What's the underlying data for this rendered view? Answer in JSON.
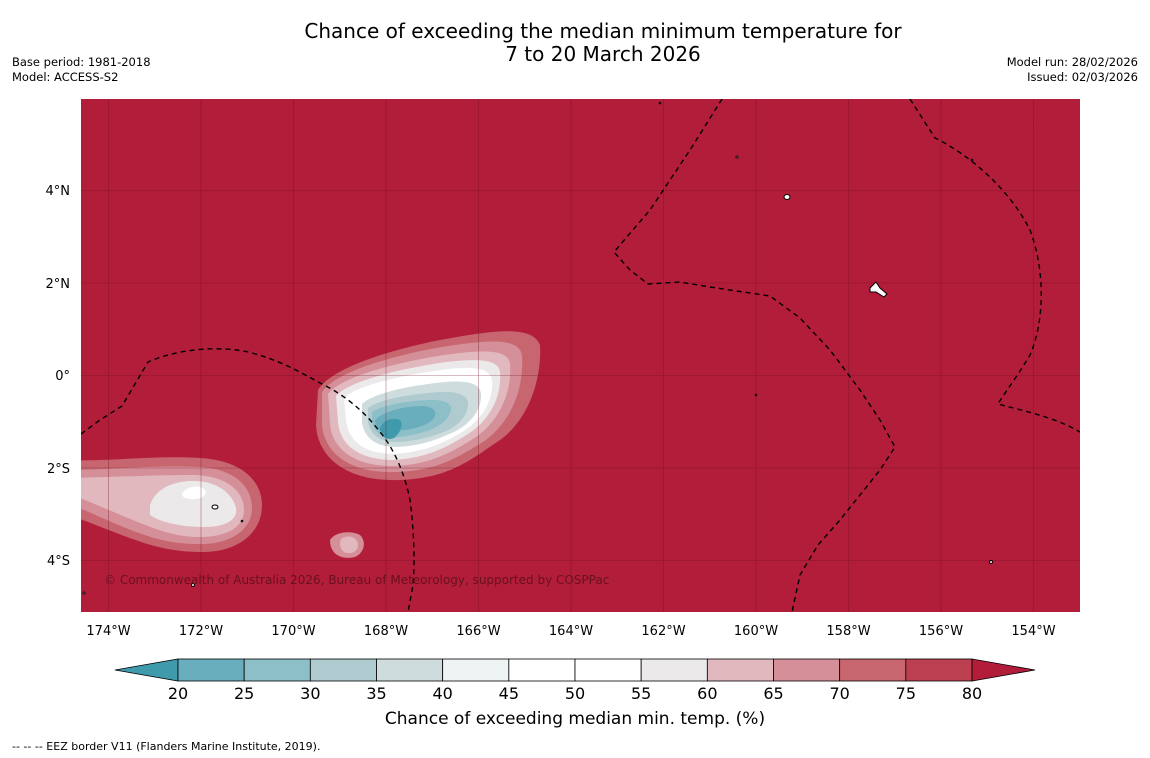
{
  "title": {
    "line1": "Chance of exceeding the median minimum temperature for",
    "line2": "7 to 20 March 2026"
  },
  "meta_left": {
    "base_period": "Base period: 1981-2018",
    "model": "Model: ACCESS-S2"
  },
  "meta_right": {
    "model_run": "Model run: 28/02/2026",
    "issued": "Issued: 02/03/2026"
  },
  "map": {
    "lon_labels": [
      "174°W",
      "172°W",
      "170°W",
      "168°W",
      "166°W",
      "164°W",
      "162°W",
      "160°W",
      "158°W",
      "156°W",
      "154°W"
    ],
    "lat_labels": [
      "4°N",
      "2°N",
      "0°",
      "2°S",
      "4°S"
    ],
    "copyright": "© Commonwealth of Australia 2026, Bureau of Meteorology, supported by COSPPac",
    "background_color": "#b21d3a"
  },
  "colorbar": {
    "ticks": [
      "20",
      "25",
      "30",
      "35",
      "40",
      "45",
      "50",
      "55",
      "60",
      "65",
      "70",
      "75",
      "80"
    ],
    "colors": [
      "#3f9aab",
      "#69aebd",
      "#8dbfc8",
      "#afcbcf",
      "#cfdcdd",
      "#eef3f3",
      "#ffffff",
      "#ffffff",
      "#ebe9e9",
      "#e2b8bf",
      "#d58f99",
      "#c7666f",
      "#bd4050",
      "#b21d3a"
    ],
    "label": "Chance of exceeding median min. temp. (%)"
  },
  "footer": "--  --  -- EEZ border V11 (Flanders Marine Institute, 2019)."
}
